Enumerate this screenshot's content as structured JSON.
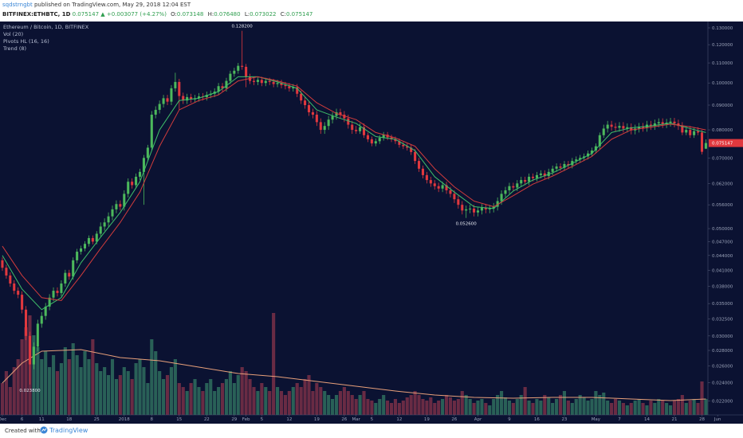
{
  "header": {
    "author": "sqdstrngbt",
    "byline": "published on TradingView.com, May 29, 2018 12:04 EST",
    "symbol": "BITFINEX:ETHBTC, 1D",
    "last": "0.075147",
    "change": "▲ +0.003077 (+4.27%)",
    "ohlc": [
      {
        "key": "O:",
        "value": "0.073148"
      },
      {
        "key": "H:",
        "value": "0.076480"
      },
      {
        "key": "L:",
        "value": "0.073022"
      },
      {
        "key": "C:",
        "value": "0.075147"
      }
    ]
  },
  "chart_data": {
    "type": "candlestick",
    "title": "Ethereum / Bitcoin, 1D, BITFINEX",
    "indicators": [
      "Vol (20)",
      "Pivots HL (16, 16)",
      "Trend (8)"
    ],
    "log_scale": true,
    "ylim": [
      0.0206,
      0.134
    ],
    "xlim": [
      -0.6,
      185
    ],
    "volume_ylim": [
      0,
      494
    ],
    "up_color": "#4cb85c",
    "down_color": "#e0383e",
    "volume_up_color": "#2f6e5e",
    "volume_down_color": "#7a3048",
    "yticks": [
      {
        "value": 0.13,
        "label": "0.130000"
      },
      {
        "value": 0.12,
        "label": "0.120000"
      },
      {
        "value": 0.11,
        "label": "0.110000"
      },
      {
        "value": 0.1,
        "label": "0.100000"
      },
      {
        "value": 0.09,
        "label": "0.090000"
      },
      {
        "value": 0.08,
        "label": "0.080000"
      },
      {
        "value": 0.07,
        "label": "0.070000"
      },
      {
        "value": 0.062,
        "label": "0.062000"
      },
      {
        "value": 0.056,
        "label": "0.056000"
      },
      {
        "value": 0.05,
        "label": "0.050000"
      },
      {
        "value": 0.047,
        "label": "0.047000"
      },
      {
        "value": 0.044,
        "label": "0.044000"
      },
      {
        "value": 0.041,
        "label": "0.041000"
      },
      {
        "value": 0.038,
        "label": "0.038000"
      },
      {
        "value": 0.035,
        "label": "0.035000"
      },
      {
        "value": 0.0325,
        "label": "0.032500"
      },
      {
        "value": 0.03,
        "label": "0.030000"
      },
      {
        "value": 0.028,
        "label": "0.028000"
      },
      {
        "value": 0.026,
        "label": "0.026000"
      },
      {
        "value": 0.024,
        "label": "0.024000"
      },
      {
        "value": 0.022,
        "label": "0.022000"
      }
    ],
    "xticks": [
      {
        "value": 0,
        "label": "Dec"
      },
      {
        "value": 5,
        "label": "6"
      },
      {
        "value": 10,
        "label": "11"
      },
      {
        "value": 17,
        "label": "18"
      },
      {
        "value": 24,
        "label": "25"
      },
      {
        "value": 31,
        "label": "2018"
      },
      {
        "value": 38,
        "label": "8"
      },
      {
        "value": 45,
        "label": "15"
      },
      {
        "value": 52,
        "label": "22"
      },
      {
        "value": 59,
        "label": "29"
      },
      {
        "value": 62,
        "label": "Feb"
      },
      {
        "value": 66,
        "label": "5"
      },
      {
        "value": 73,
        "label": "12"
      },
      {
        "value": 80,
        "label": "19"
      },
      {
        "value": 87,
        "label": "26"
      },
      {
        "value": 90,
        "label": "Mar"
      },
      {
        "value": 94,
        "label": "5"
      },
      {
        "value": 101,
        "label": "12"
      },
      {
        "value": 108,
        "label": "19"
      },
      {
        "value": 115,
        "label": "26"
      },
      {
        "value": 121,
        "label": "Apr"
      },
      {
        "value": 129,
        "label": "9"
      },
      {
        "value": 136,
        "label": "16"
      },
      {
        "value": 143,
        "label": "23"
      },
      {
        "value": 151,
        "label": "May"
      },
      {
        "value": 157,
        "label": "7"
      },
      {
        "value": 164,
        "label": "14"
      },
      {
        "value": 171,
        "label": "21"
      },
      {
        "value": 178,
        "label": "28"
      },
      {
        "value": 182,
        "label": "Jun"
      }
    ],
    "open": [
      0.043,
      0.0415,
      0.04,
      0.0385,
      0.0372,
      0.0365,
      0.034,
      0.03,
      0.0262,
      0.0285,
      0.0318,
      0.033,
      0.0345,
      0.036,
      0.0372,
      0.0368,
      0.0385,
      0.0405,
      0.0398,
      0.043,
      0.0448,
      0.0455,
      0.0465,
      0.0478,
      0.047,
      0.0488,
      0.0505,
      0.0515,
      0.053,
      0.0548,
      0.0562,
      0.0555,
      0.059,
      0.0625,
      0.0615,
      0.064,
      0.0655,
      0.07,
      0.0735,
      0.086,
      0.088,
      0.0905,
      0.093,
      0.0915,
      0.0975,
      0.1005,
      0.094,
      0.092,
      0.0935,
      0.0925,
      0.093,
      0.0938,
      0.0935,
      0.0945,
      0.095,
      0.096,
      0.0985,
      0.0975,
      0.101,
      0.1045,
      0.106,
      0.1085,
      0.108,
      0.103,
      0.101,
      0.1005,
      0.1015,
      0.1,
      0.101,
      0.1005,
      0.0995,
      0.1,
      0.099,
      0.0985,
      0.0975,
      0.098,
      0.095,
      0.092,
      0.09,
      0.087,
      0.086,
      0.083,
      0.08,
      0.0815,
      0.084,
      0.0855,
      0.087,
      0.086,
      0.0845,
      0.082,
      0.08,
      0.0795,
      0.081,
      0.078,
      0.0765,
      0.075,
      0.0758,
      0.077,
      0.0782,
      0.0772,
      0.0765,
      0.0758,
      0.0745,
      0.074,
      0.0735,
      0.072,
      0.069,
      0.0665,
      0.0645,
      0.063,
      0.062,
      0.0612,
      0.0605,
      0.0615,
      0.06,
      0.059,
      0.0575,
      0.056,
      0.0545,
      0.0548,
      0.055,
      0.054,
      0.0545,
      0.0552,
      0.0548,
      0.055,
      0.0555,
      0.057,
      0.059,
      0.06,
      0.0612,
      0.0608,
      0.062,
      0.063,
      0.0625,
      0.064,
      0.0636,
      0.0645,
      0.065,
      0.0642,
      0.0655,
      0.0665,
      0.0672,
      0.0668,
      0.068,
      0.0676,
      0.069,
      0.0695,
      0.07,
      0.0705,
      0.0715,
      0.0725,
      0.074,
      0.078,
      0.0805,
      0.082,
      0.0812,
      0.0808,
      0.0815,
      0.0805,
      0.081,
      0.0798,
      0.0805,
      0.0812,
      0.0808,
      0.082,
      0.0815,
      0.0825,
      0.083,
      0.0822,
      0.0828,
      0.0832,
      0.0825,
      0.0815,
      0.079,
      0.08,
      0.078,
      0.0795,
      0.079,
      0.073148
    ],
    "high": [
      0.0436,
      0.0421,
      0.0406,
      0.0391,
      0.0378,
      0.0371,
      0.0346,
      0.0306,
      0.0291,
      0.0324,
      0.0336,
      0.0351,
      0.0366,
      0.0378,
      0.0378,
      0.0391,
      0.0411,
      0.0411,
      0.0436,
      0.0454,
      0.0461,
      0.0471,
      0.0484,
      0.0484,
      0.0494,
      0.0515,
      0.0525,
      0.054,
      0.0558,
      0.0572,
      0.0572,
      0.06,
      0.0635,
      0.0635,
      0.065,
      0.0665,
      0.071,
      0.0745,
      0.0875,
      0.0895,
      0.092,
      0.0945,
      0.0945,
      0.099,
      0.105,
      0.102,
      0.0955,
      0.095,
      0.095,
      0.0945,
      0.0953,
      0.0953,
      0.096,
      0.0965,
      0.0975,
      0.1,
      0.1,
      0.1025,
      0.106,
      0.1075,
      0.11,
      0.1282,
      0.1095,
      0.1045,
      0.1025,
      0.103,
      0.103,
      0.1025,
      0.1025,
      0.102,
      0.1015,
      0.1015,
      0.1005,
      0.1,
      0.0995,
      0.0995,
      0.0965,
      0.0935,
      0.0915,
      0.0885,
      0.0875,
      0.0845,
      0.083,
      0.0855,
      0.087,
      0.0885,
      0.0885,
      0.0875,
      0.086,
      0.0835,
      0.0815,
      0.0825,
      0.0825,
      0.079,
      0.0775,
      0.0768,
      0.078,
      0.0792,
      0.0792,
      0.0782,
      0.0775,
      0.0768,
      0.0755,
      0.075,
      0.0745,
      0.073,
      0.07,
      0.0675,
      0.0655,
      0.064,
      0.063,
      0.0622,
      0.0625,
      0.0625,
      0.061,
      0.06,
      0.0585,
      0.057,
      0.0558,
      0.056,
      0.056,
      0.0555,
      0.0562,
      0.0562,
      0.056,
      0.0565,
      0.058,
      0.06,
      0.061,
      0.0622,
      0.0622,
      0.063,
      0.064,
      0.064,
      0.065,
      0.065,
      0.0655,
      0.066,
      0.066,
      0.0665,
      0.0675,
      0.0682,
      0.0682,
      0.069,
      0.069,
      0.07,
      0.0705,
      0.071,
      0.0715,
      0.0725,
      0.0735,
      0.075,
      0.079,
      0.082,
      0.0835,
      0.0835,
      0.0827,
      0.083,
      0.083,
      0.0825,
      0.0825,
      0.082,
      0.0827,
      0.0827,
      0.0835,
      0.0835,
      0.084,
      0.0845,
      0.0845,
      0.0843,
      0.0847,
      0.0847,
      0.084,
      0.083,
      0.0815,
      0.0815,
      0.081,
      0.081,
      0.08,
      0.07648
    ],
    "low": [
      0.0409,
      0.0394,
      0.0379,
      0.0366,
      0.0359,
      0.0334,
      0.0294,
      0.0238,
      0.0256,
      0.0279,
      0.0312,
      0.0324,
      0.0339,
      0.0354,
      0.0362,
      0.0362,
      0.0379,
      0.0392,
      0.0392,
      0.0424,
      0.0442,
      0.0449,
      0.0459,
      0.0464,
      0.0464,
      0.0482,
      0.0495,
      0.0505,
      0.052,
      0.0538,
      0.0545,
      0.0545,
      0.058,
      0.0605,
      0.0605,
      0.063,
      0.056,
      0.069,
      0.0725,
      0.0845,
      0.0865,
      0.089,
      0.09,
      0.09,
      0.096,
      0.088,
      0.0905,
      0.0905,
      0.091,
      0.091,
      0.0915,
      0.092,
      0.092,
      0.093,
      0.0935,
      0.0945,
      0.096,
      0.096,
      0.0995,
      0.103,
      0.1045,
      0.1065,
      0.098,
      0.0995,
      0.099,
      0.099,
      0.0985,
      0.0985,
      0.099,
      0.098,
      0.098,
      0.0975,
      0.097,
      0.096,
      0.096,
      0.0935,
      0.0905,
      0.0885,
      0.0855,
      0.0845,
      0.0815,
      0.0785,
      0.0785,
      0.08,
      0.0825,
      0.084,
      0.0845,
      0.083,
      0.0805,
      0.0785,
      0.0785,
      0.0785,
      0.077,
      0.0755,
      0.074,
      0.074,
      0.0748,
      0.076,
      0.0762,
      0.0755,
      0.0748,
      0.0735,
      0.073,
      0.0725,
      0.071,
      0.068,
      0.0655,
      0.0635,
      0.062,
      0.061,
      0.0602,
      0.0595,
      0.0595,
      0.059,
      0.058,
      0.0565,
      0.055,
      0.0535,
      0.0526,
      0.0538,
      0.053,
      0.053,
      0.0535,
      0.0538,
      0.0538,
      0.054,
      0.0545,
      0.056,
      0.058,
      0.059,
      0.0598,
      0.0598,
      0.061,
      0.0615,
      0.0615,
      0.0626,
      0.0626,
      0.0635,
      0.0632,
      0.0632,
      0.0645,
      0.0655,
      0.0658,
      0.0658,
      0.0666,
      0.0666,
      0.068,
      0.0685,
      0.069,
      0.0695,
      0.0705,
      0.0715,
      0.073,
      0.077,
      0.079,
      0.0797,
      0.0793,
      0.0793,
      0.079,
      0.079,
      0.0783,
      0.0783,
      0.079,
      0.0793,
      0.0793,
      0.08,
      0.08,
      0.081,
      0.0807,
      0.0807,
      0.0813,
      0.081,
      0.08,
      0.078,
      0.078,
      0.077,
      0.077,
      0.078,
      0.0712,
      0.073022
    ],
    "close": [
      0.0415,
      0.04,
      0.0385,
      0.0372,
      0.0365,
      0.034,
      0.03,
      0.0262,
      0.0285,
      0.0318,
      0.033,
      0.0345,
      0.036,
      0.0372,
      0.0368,
      0.0385,
      0.0405,
      0.0398,
      0.043,
      0.0448,
      0.0455,
      0.0465,
      0.0478,
      0.047,
      0.0488,
      0.0505,
      0.0515,
      0.053,
      0.0548,
      0.0562,
      0.0555,
      0.059,
      0.0625,
      0.0615,
      0.064,
      0.0655,
      0.07,
      0.0735,
      0.086,
      0.088,
      0.0905,
      0.093,
      0.0915,
      0.0975,
      0.1005,
      0.094,
      0.092,
      0.0935,
      0.0925,
      0.093,
      0.0938,
      0.0935,
      0.0945,
      0.095,
      0.096,
      0.0985,
      0.0975,
      0.101,
      0.1045,
      0.106,
      0.1085,
      0.108,
      0.103,
      0.101,
      0.1005,
      0.1015,
      0.1,
      0.101,
      0.1005,
      0.0995,
      0.1,
      0.099,
      0.0985,
      0.0975,
      0.098,
      0.095,
      0.092,
      0.09,
      0.087,
      0.086,
      0.083,
      0.08,
      0.0815,
      0.084,
      0.0855,
      0.087,
      0.086,
      0.0845,
      0.082,
      0.08,
      0.0795,
      0.081,
      0.078,
      0.0765,
      0.075,
      0.0758,
      0.077,
      0.0782,
      0.0772,
      0.0765,
      0.0758,
      0.0745,
      0.074,
      0.0735,
      0.072,
      0.069,
      0.0665,
      0.0645,
      0.063,
      0.062,
      0.0612,
      0.0605,
      0.0615,
      0.06,
      0.059,
      0.0575,
      0.056,
      0.0545,
      0.0548,
      0.055,
      0.054,
      0.0545,
      0.0552,
      0.0548,
      0.055,
      0.0555,
      0.057,
      0.059,
      0.06,
      0.0612,
      0.0608,
      0.062,
      0.063,
      0.0625,
      0.064,
      0.0636,
      0.0645,
      0.065,
      0.0642,
      0.0655,
      0.0665,
      0.0672,
      0.0668,
      0.068,
      0.0676,
      0.069,
      0.0695,
      0.07,
      0.0705,
      0.0715,
      0.0725,
      0.074,
      0.078,
      0.0805,
      0.082,
      0.0812,
      0.0808,
      0.0815,
      0.0805,
      0.081,
      0.0798,
      0.0805,
      0.0812,
      0.0808,
      0.082,
      0.0815,
      0.0825,
      0.083,
      0.0822,
      0.0828,
      0.0832,
      0.0825,
      0.0815,
      0.079,
      0.08,
      0.078,
      0.0795,
      0.079,
      0.07207,
      0.075147
    ],
    "volume": [
      40,
      55,
      35,
      60,
      70,
      95,
      110,
      125,
      100,
      85,
      70,
      80,
      60,
      75,
      55,
      65,
      85,
      70,
      90,
      75,
      60,
      80,
      70,
      95,
      65,
      55,
      60,
      50,
      70,
      45,
      50,
      60,
      55,
      45,
      65,
      70,
      60,
      40,
      95,
      80,
      55,
      45,
      50,
      60,
      70,
      40,
      35,
      30,
      40,
      45,
      35,
      30,
      40,
      45,
      30,
      35,
      40,
      45,
      55,
      40,
      50,
      60,
      55,
      45,
      35,
      30,
      40,
      35,
      30,
      128,
      35,
      30,
      25,
      30,
      35,
      40,
      35,
      45,
      50,
      30,
      40,
      35,
      30,
      25,
      20,
      25,
      30,
      35,
      30,
      25,
      20,
      25,
      30,
      20,
      18,
      15,
      20,
      25,
      18,
      15,
      20,
      15,
      18,
      22,
      25,
      30,
      25,
      20,
      18,
      22,
      15,
      18,
      20,
      25,
      22,
      18,
      20,
      30,
      25,
      20,
      15,
      18,
      20,
      15,
      12,
      20,
      25,
      30,
      22,
      18,
      15,
      20,
      25,
      35,
      18,
      15,
      20,
      18,
      25,
      22,
      15,
      20,
      25,
      30,
      18,
      15,
      20,
      25,
      22,
      18,
      20,
      30,
      25,
      28,
      18,
      15,
      20,
      18,
      15,
      12,
      15,
      18,
      20,
      15,
      12,
      18,
      15,
      20,
      18,
      15,
      12,
      18,
      20,
      25,
      15,
      18,
      20,
      15,
      42,
      20
    ],
    "lines": [
      {
        "pane": "price",
        "color": "#3fbf6a",
        "x": [
          0,
          5,
          10,
          15,
          20,
          25,
          30,
          35,
          40,
          45,
          50,
          55,
          60,
          65,
          70,
          75,
          80,
          85,
          90,
          95,
          100,
          105,
          110,
          115,
          120,
          125,
          130,
          135,
          140,
          145,
          150,
          155,
          160,
          165,
          170,
          175,
          179
        ],
        "values": [
          0.044,
          0.0375,
          0.034,
          0.036,
          0.0425,
          0.048,
          0.054,
          0.0625,
          0.08,
          0.092,
          0.093,
          0.096,
          0.103,
          0.103,
          0.1005,
          0.0975,
          0.088,
          0.085,
          0.0825,
          0.0775,
          0.0765,
          0.0725,
          0.064,
          0.0595,
          0.0555,
          0.055,
          0.0598,
          0.063,
          0.0652,
          0.0682,
          0.0715,
          0.079,
          0.0808,
          0.0815,
          0.0826,
          0.0805,
          0.079
        ]
      },
      {
        "pane": "price",
        "color": "#d23c3c",
        "x": [
          0,
          5,
          10,
          15,
          20,
          25,
          30,
          35,
          40,
          45,
          50,
          55,
          60,
          65,
          70,
          75,
          80,
          85,
          90,
          95,
          100,
          105,
          110,
          115,
          120,
          125,
          130,
          135,
          140,
          145,
          150,
          155,
          160,
          165,
          170,
          175,
          179
        ],
        "values": [
          0.046,
          0.04,
          0.036,
          0.0355,
          0.04,
          0.0455,
          0.0515,
          0.0595,
          0.074,
          0.088,
          0.092,
          0.0945,
          0.101,
          0.103,
          0.101,
          0.0985,
          0.091,
          0.0865,
          0.084,
          0.079,
          0.077,
          0.074,
          0.0665,
          0.061,
          0.057,
          0.0555,
          0.0585,
          0.0618,
          0.0642,
          0.0672,
          0.0705,
          0.0765,
          0.08,
          0.081,
          0.0822,
          0.0812,
          0.08
        ]
      },
      {
        "pane": "volume",
        "color": "#e8a07a",
        "x": [
          0,
          5,
          10,
          20,
          30,
          40,
          50,
          60,
          70,
          80,
          90,
          100,
          110,
          120,
          130,
          140,
          150,
          160,
          170,
          179
        ],
        "values": [
          40,
          65,
          80,
          82,
          72,
          68,
          60,
          52,
          48,
          42,
          36,
          30,
          25,
          22,
          21,
          22,
          22,
          20,
          18,
          20
        ]
      }
    ],
    "annotations": [
      {
        "label": "0.128200",
        "x": 61,
        "value": 0.1282,
        "side": "above"
      },
      {
        "label": "0.052600",
        "x": 118,
        "value": 0.0526,
        "side": "below"
      },
      {
        "label": "0.023800",
        "x": 7,
        "value": 0.0238,
        "side": "below"
      }
    ]
  },
  "footer": {
    "created": "Created with",
    "brand": "TradingView"
  }
}
